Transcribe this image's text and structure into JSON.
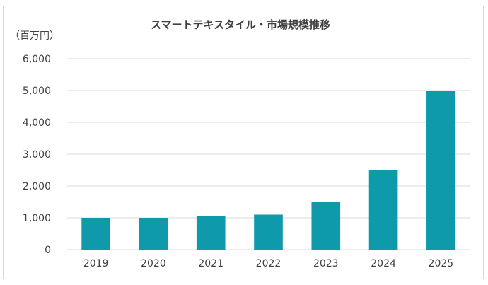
{
  "chart_data": {
    "type": "bar",
    "title": "スマートテキスタイル・市場規模推移",
    "unit_label": "（百万円）",
    "categories": [
      "2019",
      "2020",
      "2021",
      "2022",
      "2023",
      "2024",
      "2025"
    ],
    "values": [
      1000,
      1000,
      1050,
      1100,
      1500,
      2500,
      5000
    ],
    "ylim": [
      0,
      6000
    ],
    "yticks": [
      0,
      1000,
      2000,
      3000,
      4000,
      5000,
      6000
    ],
    "ytick_labels": [
      "0",
      "1,000",
      "2,000",
      "3,000",
      "4,000",
      "5,000",
      "6,000"
    ],
    "grid": true,
    "legend": "none",
    "bar_color": "#0e9aab"
  }
}
